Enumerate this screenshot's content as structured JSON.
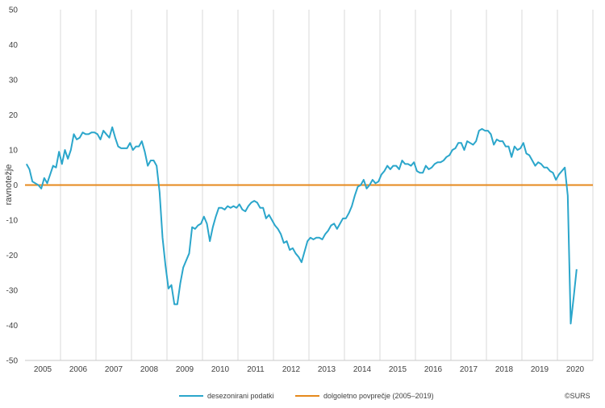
{
  "chart_data": {
    "type": "line",
    "ylabel": "ravnotežje",
    "ylim": [
      -50,
      50
    ],
    "yticks": [
      "50",
      "40",
      "30",
      "20",
      "10",
      "0",
      "-10",
      "-20",
      "-30",
      "-40",
      "-50"
    ],
    "year_labels": [
      "2005",
      "2006",
      "2007",
      "2008",
      "2009",
      "2010",
      "2011",
      "2012",
      "2013",
      "2014",
      "2015",
      "2016",
      "2017",
      "2018",
      "2019",
      "2020"
    ],
    "grid": "vertical year separators",
    "legend_position": "bottom",
    "series": [
      {
        "name": "desezonirani podatki",
        "color": "#2ba6cb",
        "x_start": "2005-01",
        "frequency": "monthly",
        "values": [
          6,
          4.5,
          1,
          0.5,
          0,
          -1,
          2,
          0.5,
          3,
          5.5,
          5,
          9.5,
          6,
          10,
          7.5,
          10,
          14.5,
          13,
          13.5,
          15,
          14.5,
          14.5,
          15,
          15,
          14.5,
          13,
          15.5,
          14.5,
          13.5,
          16.5,
          13.5,
          11,
          10.5,
          10.5,
          10.5,
          12,
          10,
          11,
          11,
          12.5,
          9.5,
          5.5,
          7,
          7,
          5.5,
          -2,
          -15,
          -23,
          -29.5,
          -28.5,
          -34,
          -34,
          -28,
          -23.5,
          -21.5,
          -19.5,
          -12,
          -12.5,
          -11.5,
          -11,
          -9,
          -11,
          -16,
          -12,
          -9,
          -6.5,
          -6.5,
          -7,
          -6,
          -6.5,
          -6,
          -6.5,
          -5.5,
          -7,
          -7.5,
          -6,
          -5,
          -4.5,
          -5,
          -6.5,
          -6.5,
          -9.5,
          -8.5,
          -10,
          -11.5,
          -12.5,
          -14,
          -16.5,
          -16,
          -18.5,
          -18,
          -19.5,
          -20.5,
          -22,
          -19,
          -16,
          -15,
          -15.5,
          -15,
          -15,
          -15.5,
          -14,
          -13,
          -11.5,
          -11,
          -12.5,
          -11,
          -9.5,
          -9.5,
          -8,
          -6,
          -3,
          -0.5,
          0,
          1.5,
          -1,
          0,
          1.5,
          0.5,
          1,
          3,
          4,
          5.5,
          4.5,
          5.5,
          5.5,
          4.5,
          7,
          6,
          6,
          5.5,
          6.5,
          4,
          3.5,
          3.5,
          5.5,
          4.5,
          5,
          6,
          6.5,
          6.5,
          7,
          8,
          8.5,
          10,
          10.5,
          12,
          12,
          10,
          12.5,
          12,
          11.5,
          12.5,
          15.5,
          16,
          15.5,
          15.5,
          14.5,
          11.5,
          13,
          12.5,
          12.5,
          11,
          11,
          8,
          11,
          10,
          10.5,
          12,
          9,
          8.5,
          7,
          5.5,
          6.5,
          6,
          5,
          5,
          4,
          3.5,
          1.5,
          3,
          4,
          5,
          -3,
          -39.5,
          -32,
          -24
        ]
      },
      {
        "name": "dolgoletno povprečje (2005–2019)",
        "color": "#e6891c",
        "value": 0
      }
    ]
  },
  "credit": "©SURS"
}
